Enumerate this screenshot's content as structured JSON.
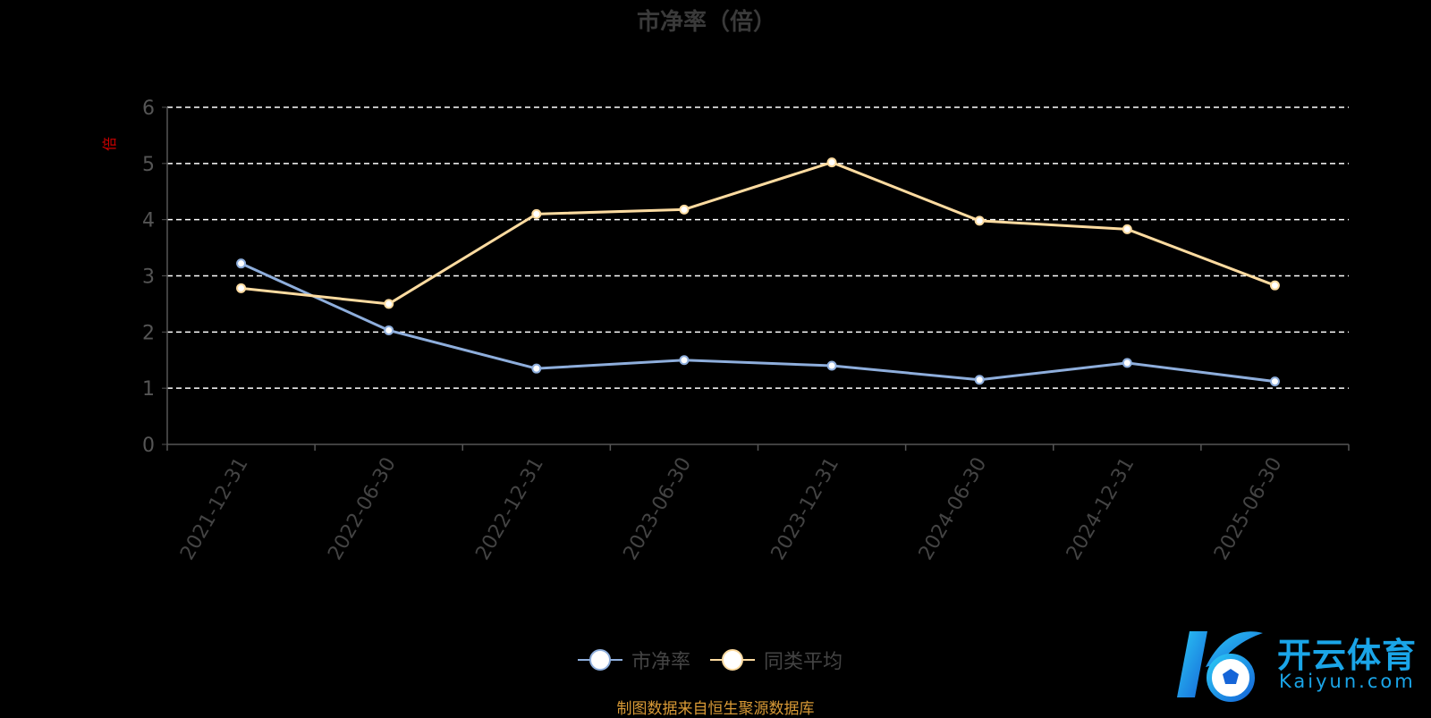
{
  "chart_data": {
    "type": "line",
    "title": "市净率（倍）",
    "ylabel": "倍",
    "ylim": [
      0,
      6
    ],
    "yticks": [
      "0",
      "1",
      "2",
      "3",
      "4",
      "5",
      "6"
    ],
    "categories": [
      "2021-12-31",
      "2022-06-30",
      "2022-12-31",
      "2023-06-30",
      "2023-12-31",
      "2024-06-30",
      "2024-12-31",
      "2025-06-30"
    ],
    "series": [
      {
        "name": "市净率",
        "color": "#8eaedc",
        "values": [
          3.22,
          2.03,
          1.35,
          1.5,
          1.4,
          1.15,
          1.45,
          1.12
        ]
      },
      {
        "name": "同类平均",
        "color": "#fddba0",
        "values": [
          2.78,
          2.5,
          4.1,
          4.18,
          5.02,
          3.98,
          3.83,
          2.83
        ]
      }
    ],
    "grid": true,
    "legend": "bottom-center"
  },
  "source_note": "制图数据来自恒生聚源数据库",
  "watermark": {
    "cn": "开云体育",
    "en": "Kaiyun.com",
    "icon": "k-soccer-ball-logo"
  },
  "colors": {
    "background": "#000000",
    "axis": "#555555",
    "grid": "#ffffff",
    "ylabel": "#cc0000",
    "tick_text": "#555555",
    "source": "#d99a36"
  }
}
